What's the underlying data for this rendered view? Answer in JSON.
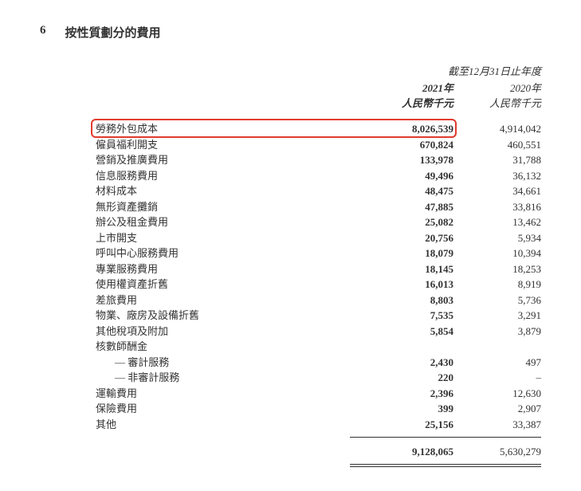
{
  "section": {
    "number": "6",
    "title": "按性質劃分的費用"
  },
  "header": {
    "period": "截至12月31日止年度",
    "year1": "2021年",
    "year2": "2020年",
    "unit1": "人民幣千元",
    "unit2": "人民幣千元"
  },
  "highlight": {
    "color": "#e23b2e",
    "row_index": 0
  },
  "rows": [
    {
      "label": "勞務外包成本",
      "v1": "8,026,539",
      "v2": "4,914,042"
    },
    {
      "label": "僱員福利開支",
      "v1": "670,824",
      "v2": "460,551"
    },
    {
      "label": "營銷及推廣費用",
      "v1": "133,978",
      "v2": "31,788"
    },
    {
      "label": "信息服務費用",
      "v1": "49,496",
      "v2": "36,132"
    },
    {
      "label": "材料成本",
      "v1": "48,475",
      "v2": "34,661"
    },
    {
      "label": "無形資產攤銷",
      "v1": "47,885",
      "v2": "33,816"
    },
    {
      "label": "辦公及租金費用",
      "v1": "25,082",
      "v2": "13,462"
    },
    {
      "label": "上市開支",
      "v1": "20,756",
      "v2": "5,934"
    },
    {
      "label": "呼叫中心服務費用",
      "v1": "18,079",
      "v2": "10,394"
    },
    {
      "label": "專業服務費用",
      "v1": "18,145",
      "v2": "18,253"
    },
    {
      "label": "使用權資產折舊",
      "v1": "16,013",
      "v2": "8,919"
    },
    {
      "label": "差旅費用",
      "v1": "8,803",
      "v2": "5,736"
    },
    {
      "label": "物業、廠房及設備折舊",
      "v1": "7,535",
      "v2": "3,291"
    },
    {
      "label": "其他稅項及附加",
      "v1": "5,854",
      "v2": "3,879"
    },
    {
      "label": "核數師酬金",
      "v1": "",
      "v2": ""
    },
    {
      "label": "— 審計服務",
      "v1": "2,430",
      "v2": "497",
      "indent": true
    },
    {
      "label": "— 非審計服務",
      "v1": "220",
      "v2": "–",
      "indent": true
    },
    {
      "label": "運輸費用",
      "v1": "2,396",
      "v2": "12,630"
    },
    {
      "label": "保險費用",
      "v1": "399",
      "v2": "2,907"
    },
    {
      "label": "其他",
      "v1": "25,156",
      "v2": "33,387"
    }
  ],
  "total": {
    "label": "",
    "v1": "9,128,065",
    "v2": "5,630,279"
  }
}
